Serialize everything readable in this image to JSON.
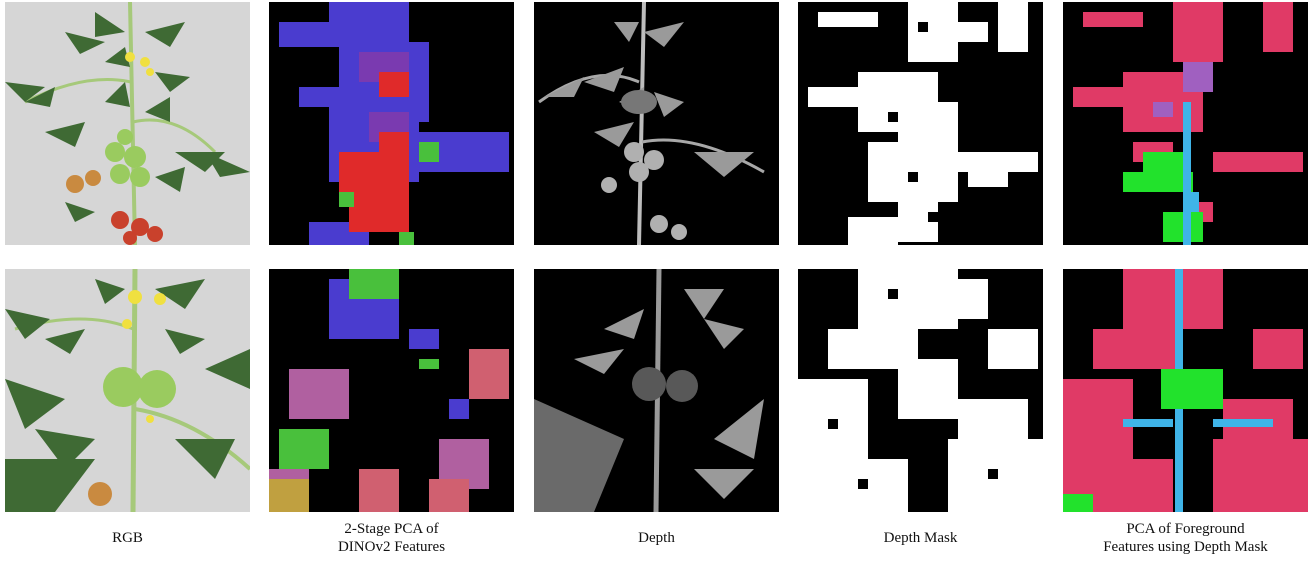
{
  "captions": {
    "rgb": [
      "RGB"
    ],
    "pca": [
      "2-Stage PCA of",
      "DINOv2 Features"
    ],
    "depth": [
      "Depth"
    ],
    "mask": [
      "Depth Mask"
    ],
    "fg_pca": [
      "PCA of Foreground",
      "Features using Depth Mask"
    ]
  },
  "colors": {
    "rgb_background": "#d6d6d6",
    "feature_background": "#000000",
    "leaf_green": "#3f6a34",
    "stem_green": "#a6c97a",
    "tomato_red": "#c9412c",
    "tomato_green": "#9acb5f",
    "flower_yellow": "#f0e040",
    "pca_blue": "#4a3ccf",
    "pca_red": "#e02a2a",
    "pca_green": "#49c03c",
    "fg_pink": "#e03a66",
    "fg_green": "#22e22c",
    "fg_blue": "#3fb4e8",
    "mask_white": "#ffffff"
  }
}
